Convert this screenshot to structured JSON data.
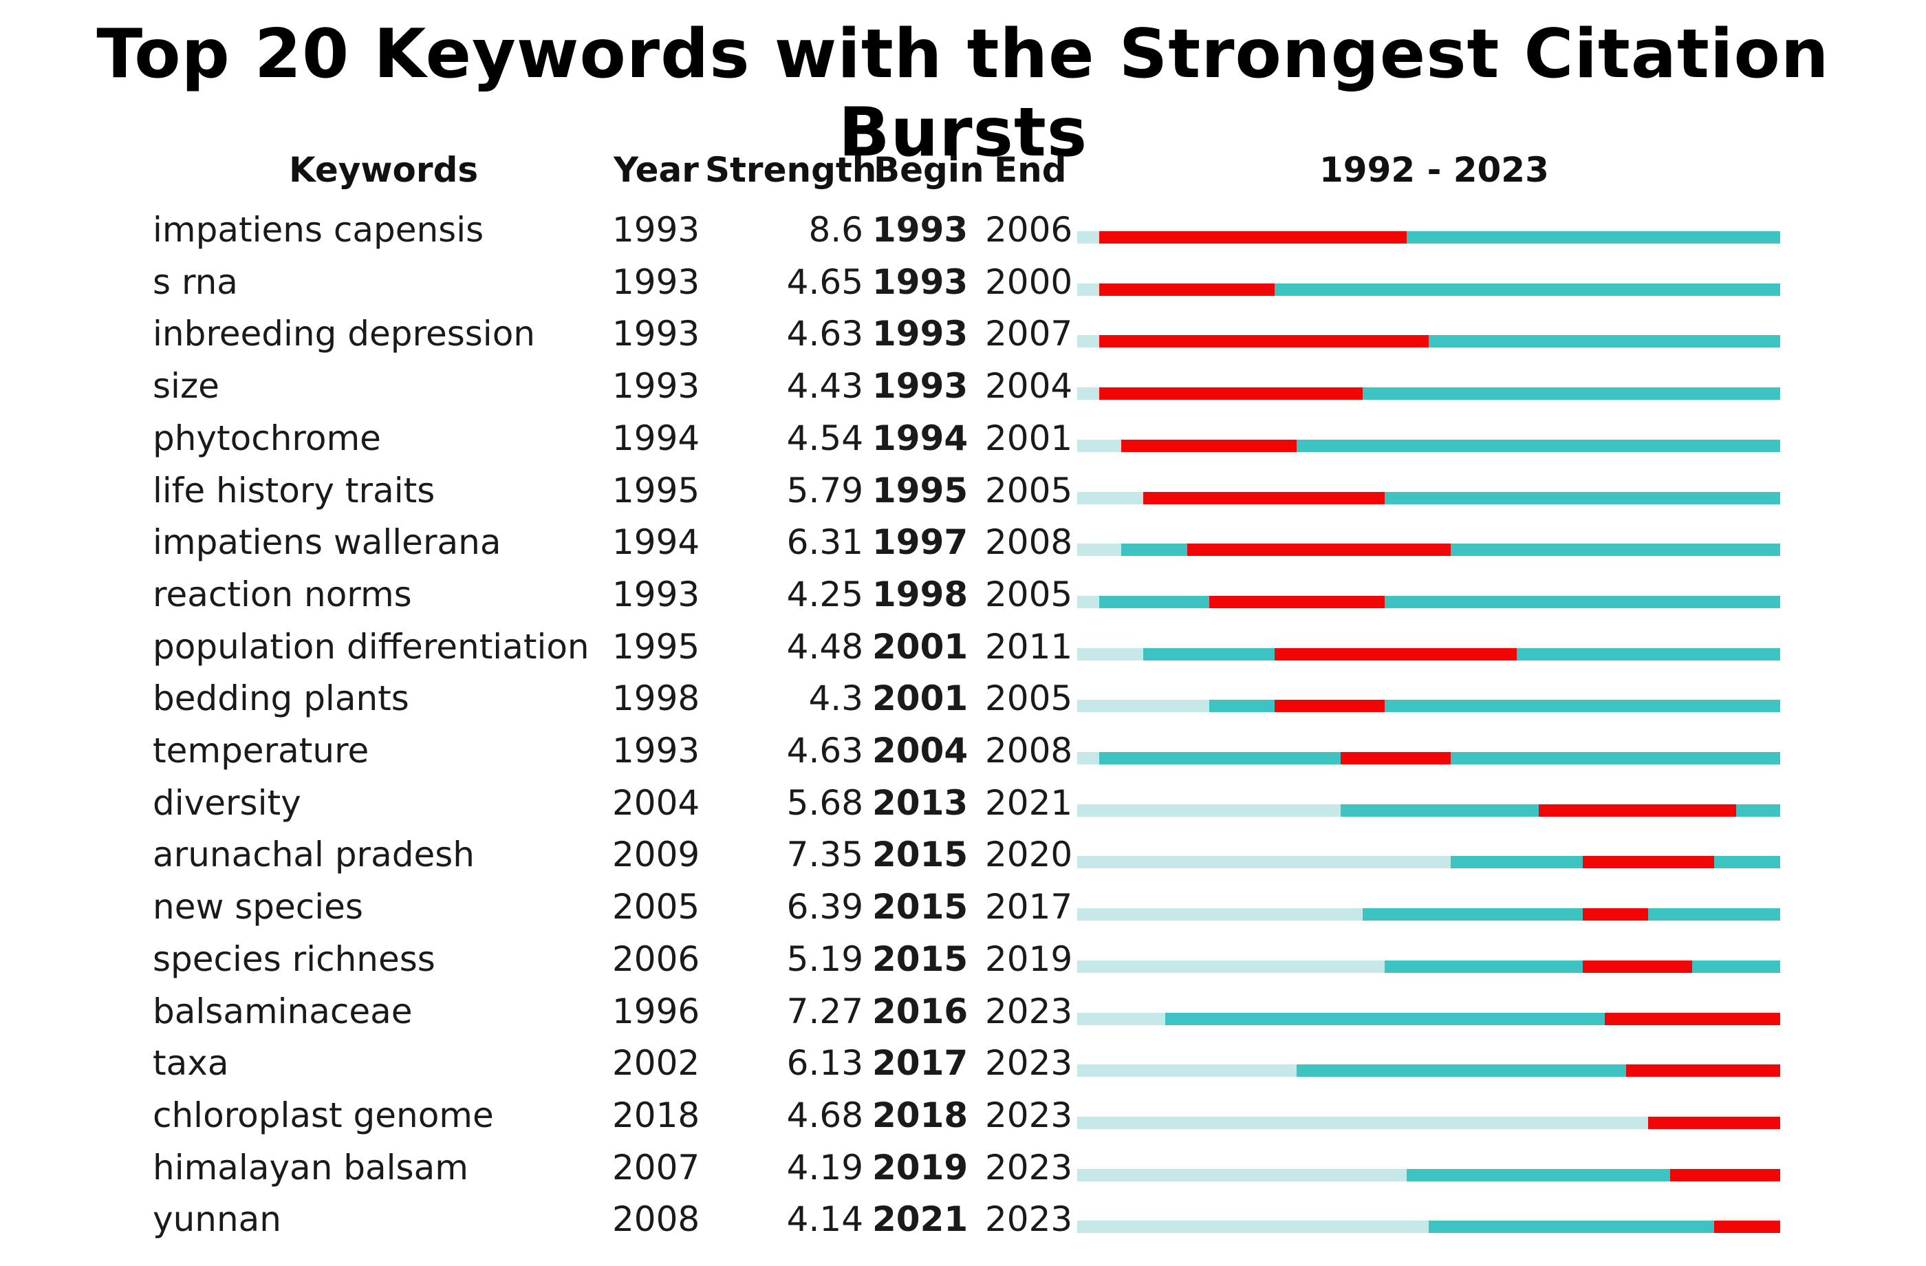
{
  "title": "Top 20 Keywords with the Strongest Citation Bursts",
  "headers": {
    "keywords": "Keywords",
    "year": "Year",
    "strength": "Strength",
    "begin": "Begin",
    "end": "End",
    "range": "1992 - 2023"
  },
  "colors": {
    "burst": "#f20505",
    "active": "#3ec3c3",
    "inactive": "#c7e8e8"
  },
  "chart_data": {
    "type": "table",
    "timeline": {
      "start": 1992,
      "end": 2023
    },
    "rows": [
      {
        "keyword": "impatiens capensis",
        "year": 1993,
        "strength": "8.6",
        "begin": 1993,
        "end": 2006
      },
      {
        "keyword": "s rna",
        "year": 1993,
        "strength": "4.65",
        "begin": 1993,
        "end": 2000
      },
      {
        "keyword": "inbreeding depression",
        "year": 1993,
        "strength": "4.63",
        "begin": 1993,
        "end": 2007
      },
      {
        "keyword": "size",
        "year": 1993,
        "strength": "4.43",
        "begin": 1993,
        "end": 2004
      },
      {
        "keyword": "phytochrome",
        "year": 1994,
        "strength": "4.54",
        "begin": 1994,
        "end": 2001
      },
      {
        "keyword": "life history traits",
        "year": 1995,
        "strength": "5.79",
        "begin": 1995,
        "end": 2005
      },
      {
        "keyword": "impatiens wallerana",
        "year": 1994,
        "strength": "6.31",
        "begin": 1997,
        "end": 2008
      },
      {
        "keyword": "reaction norms",
        "year": 1993,
        "strength": "4.25",
        "begin": 1998,
        "end": 2005
      },
      {
        "keyword": "population differentiation",
        "year": 1995,
        "strength": "4.48",
        "begin": 2001,
        "end": 2011
      },
      {
        "keyword": "bedding plants",
        "year": 1998,
        "strength": "4.3",
        "begin": 2001,
        "end": 2005
      },
      {
        "keyword": "temperature",
        "year": 1993,
        "strength": "4.63",
        "begin": 2004,
        "end": 2008
      },
      {
        "keyword": "diversity",
        "year": 2004,
        "strength": "5.68",
        "begin": 2013,
        "end": 2021
      },
      {
        "keyword": "arunachal pradesh",
        "year": 2009,
        "strength": "7.35",
        "begin": 2015,
        "end": 2020
      },
      {
        "keyword": "new species",
        "year": 2005,
        "strength": "6.39",
        "begin": 2015,
        "end": 2017
      },
      {
        "keyword": "species richness",
        "year": 2006,
        "strength": "5.19",
        "begin": 2015,
        "end": 2019
      },
      {
        "keyword": "balsaminaceae",
        "year": 1996,
        "strength": "7.27",
        "begin": 2016,
        "end": 2023
      },
      {
        "keyword": "taxa",
        "year": 2002,
        "strength": "6.13",
        "begin": 2017,
        "end": 2023
      },
      {
        "keyword": "chloroplast genome",
        "year": 2018,
        "strength": "4.68",
        "begin": 2018,
        "end": 2023
      },
      {
        "keyword": "himalayan balsam",
        "year": 2007,
        "strength": "4.19",
        "begin": 2019,
        "end": 2023
      },
      {
        "keyword": "yunnan",
        "year": 2008,
        "strength": "4.14",
        "begin": 2021,
        "end": 2023
      }
    ]
  }
}
